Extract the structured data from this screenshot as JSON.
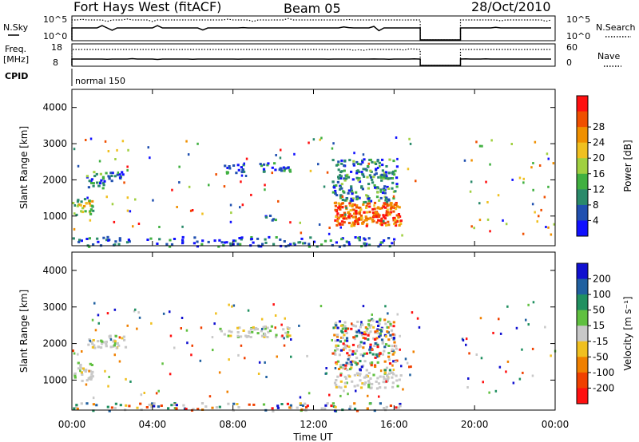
{
  "header": {
    "station": "Fort Hays West (fitACF)",
    "beam": "Beam 05",
    "date": "28/Oct/2010"
  },
  "top_panels": {
    "nsky_label": "N.Sky",
    "nsky_ticks": [
      "10^5",
      "10^0"
    ],
    "nsearch_label": "N.Search",
    "nsearch_ticks": [
      "10^5",
      "10^0"
    ],
    "freq_label": "Freq.",
    "freq_unit": "[MHz]",
    "freq_ticks": [
      "18",
      "8"
    ],
    "nave_label": "Nave",
    "nave_ticks": [
      "60",
      "0"
    ],
    "cpid_label": "CPID",
    "cpid_value": "normal 150"
  },
  "chart_data": [
    {
      "type": "heatmap",
      "name": "power",
      "ylabel": "Slant Range [km]",
      "xlabel": "",
      "xlim": [
        0,
        24
      ],
      "ylim": [
        180,
        4500
      ],
      "x_tick_values": [
        0,
        4,
        8,
        12,
        16,
        20,
        24
      ],
      "y_ticks": [
        1000,
        2000,
        3000,
        4000
      ],
      "colorbar": {
        "label": "Power [dB]",
        "ticks": [
          "4",
          "8",
          "12",
          "16",
          "20",
          "24",
          "28"
        ],
        "colors": [
          "#1010ff",
          "#2050b0",
          "#2a8a6a",
          "#40b040",
          "#a0d040",
          "#f0c020",
          "#f09000",
          "#f05000",
          "#ff1010"
        ]
      },
      "data_gaps_hours": [
        [
          17.3,
          19.3
        ]
      ],
      "regions": [
        {
          "t": [
            0.0,
            1.0
          ],
          "range_km": [
            1000,
            1550
          ],
          "level": "medium"
        },
        {
          "t": [
            0.7,
            1.7
          ],
          "range_km": [
            1800,
            2250
          ],
          "level": "low-medium"
        },
        {
          "t": [
            1.5,
            2.7
          ],
          "range_km": [
            2000,
            2250
          ],
          "level": "low"
        },
        {
          "t": [
            7.3,
            8.5
          ],
          "range_km": [
            2200,
            2450
          ],
          "level": "low"
        },
        {
          "t": [
            9.4,
            10.2
          ],
          "range_km": [
            900,
            1050
          ],
          "level": "low"
        },
        {
          "t": [
            9.3,
            10.8
          ],
          "range_km": [
            2200,
            2500
          ],
          "level": "low"
        },
        {
          "t": [
            13.0,
            16.3
          ],
          "range_km": [
            750,
            1400
          ],
          "level": "high"
        },
        {
          "t": [
            12.9,
            16.1
          ],
          "range_km": [
            1400,
            2600
          ],
          "level": "low-medium"
        },
        {
          "t": [
            0.0,
            16.3
          ],
          "range_km": [
            180,
            450
          ],
          "level": "low"
        }
      ]
    },
    {
      "type": "heatmap",
      "name": "velocity",
      "ylabel": "Slant Range [km]",
      "xlabel": "Time UT",
      "xlim": [
        0,
        24
      ],
      "ylim": [
        180,
        4500
      ],
      "x_tick_values": [
        0,
        4,
        8,
        12,
        16,
        20,
        24
      ],
      "x_ticks": [
        "00:00",
        "04:00",
        "08:00",
        "12:00",
        "16:00",
        "20:00",
        "00:00"
      ],
      "y_ticks": [
        1000,
        2000,
        3000,
        4000
      ],
      "colorbar": {
        "label": "Velocity [m s⁻¹]",
        "ticks": [
          "200",
          "100",
          "50",
          "15",
          "-15",
          "-50",
          "-100",
          "-200"
        ],
        "colors": [
          "#1010d0",
          "#2060a0",
          "#209060",
          "#60c040",
          "#c8c8c8",
          "#f0c020",
          "#f08000",
          "#f04000",
          "#ff1010"
        ]
      },
      "data_gaps_hours": [
        [
          17.3,
          19.3
        ]
      ],
      "regions": [
        {
          "t": [
            0.0,
            1.0
          ],
          "range_km": [
            1000,
            1550
          ],
          "level": "ground"
        },
        {
          "t": [
            0.7,
            2.7
          ],
          "range_km": [
            1900,
            2250
          ],
          "level": "ground"
        },
        {
          "t": [
            7.3,
            10.8
          ],
          "range_km": [
            2200,
            2500
          ],
          "level": "ground"
        },
        {
          "t": [
            13.0,
            16.3
          ],
          "range_km": [
            800,
            1250
          ],
          "level": "ground"
        },
        {
          "t": [
            12.9,
            16.1
          ],
          "range_km": [
            1300,
            2700
          ],
          "level": "mixed"
        },
        {
          "t": [
            0.0,
            16.3
          ],
          "range_km": [
            180,
            400
          ],
          "level": "mixed"
        }
      ]
    }
  ]
}
